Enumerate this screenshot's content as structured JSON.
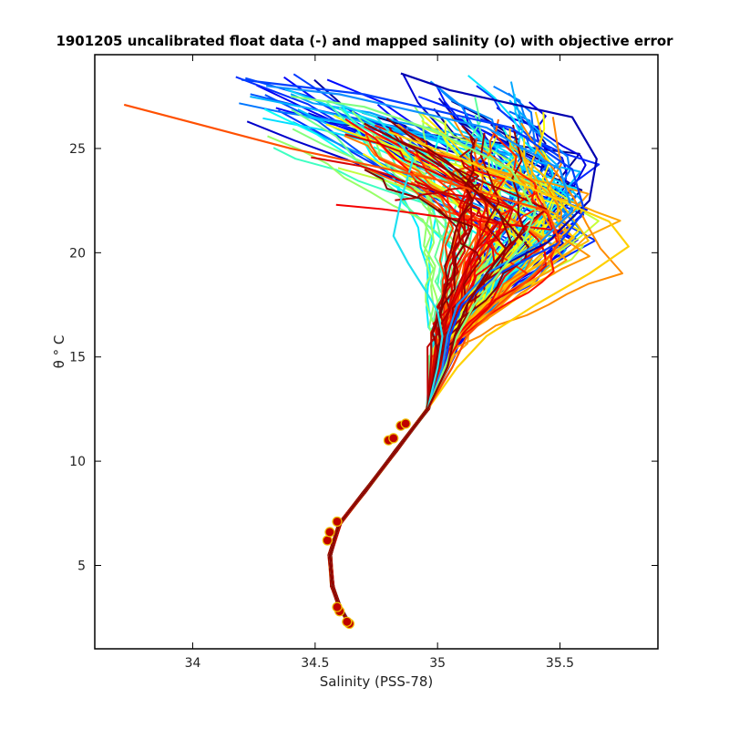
{
  "chart_data": {
    "type": "line",
    "title": "1901205 uncalibrated float data (-) and mapped salinity (o) with objective error",
    "xlabel": "Salinity (PSS-78)",
    "ylabel": "θ ° C",
    "xlim": [
      33.6,
      35.9
    ],
    "ylim": [
      1,
      29.5
    ],
    "xticks": [
      34,
      34.5,
      35,
      35.5
    ],
    "xtick_labels": [
      "34",
      "34.5",
      "35",
      "35.5"
    ],
    "yticks": [
      5,
      10,
      15,
      20,
      25
    ],
    "ytick_labels": [
      "5",
      "10",
      "15",
      "20",
      "25"
    ],
    "grid": false,
    "legend": "none",
    "colormap": "jet (profile index)",
    "colors": {
      "earliest": "#00008f",
      "blue": "#0030ff",
      "cyan": "#20e0f0",
      "green": "#80ff80",
      "yellow": "#ffd000",
      "orange": "#ff5000",
      "latest": "#8b0000"
    },
    "representative_profiles": [
      {
        "color": "#0000b0",
        "S": [
          34.64,
          34.6,
          34.57,
          34.56,
          34.6,
          34.7,
          34.83,
          34.96,
          35.02,
          35.04,
          35.08,
          35.2,
          35.45,
          35.62,
          35.65,
          35.55,
          35.05,
          34.85
        ],
        "T": [
          2.2,
          3.0,
          4.0,
          5.5,
          7.0,
          8.5,
          10.5,
          12.5,
          14.5,
          16.0,
          17.5,
          19.0,
          20.5,
          22.5,
          24.5,
          26.5,
          27.8,
          28.6
        ]
      },
      {
        "color": "#0040ff",
        "S": [
          34.64,
          34.6,
          34.57,
          34.56,
          34.6,
          34.7,
          34.83,
          34.96,
          35.03,
          35.05,
          35.1,
          35.25,
          35.5,
          35.6,
          35.55,
          35.3,
          34.7,
          34.2
        ],
        "T": [
          2.2,
          3.0,
          4.0,
          5.5,
          7.0,
          8.5,
          10.5,
          12.5,
          14.5,
          16.0,
          17.5,
          19.0,
          20.5,
          22.0,
          24.0,
          26.0,
          27.6,
          28.3
        ]
      },
      {
        "color": "#1090ff",
        "S": [
          34.64,
          34.6,
          34.57,
          34.56,
          34.6,
          34.7,
          34.83,
          34.96,
          35.02,
          35.04,
          35.08,
          35.2,
          35.42,
          35.55,
          35.5,
          35.2,
          34.6,
          34.3
        ],
        "T": [
          2.2,
          3.0,
          4.0,
          5.5,
          7.0,
          8.5,
          10.5,
          12.5,
          14.5,
          16.0,
          17.5,
          19.0,
          20.5,
          22.0,
          24.0,
          26.0,
          27.6,
          28.0
        ]
      },
      {
        "color": "#20e0f0",
        "S": [
          34.64,
          34.6,
          34.57,
          34.56,
          34.6,
          34.7,
          34.83,
          34.96,
          35.0,
          35.02,
          35.0,
          34.95,
          34.88,
          34.82,
          34.85,
          34.9,
          34.75,
          34.55
        ],
        "T": [
          2.2,
          3.0,
          4.0,
          5.5,
          7.0,
          8.5,
          10.5,
          12.5,
          14.5,
          16.0,
          17.2,
          18.2,
          19.5,
          20.8,
          22.5,
          24.5,
          26.5,
          27.3
        ]
      },
      {
        "color": "#80ff80",
        "S": [
          34.64,
          34.6,
          34.57,
          34.56,
          34.6,
          34.7,
          34.83,
          34.96,
          35.03,
          35.08,
          35.15,
          35.25,
          35.35,
          35.4,
          35.3,
          35.0,
          34.7,
          34.4
        ],
        "T": [
          2.2,
          3.0,
          4.0,
          5.5,
          7.0,
          8.5,
          10.5,
          12.5,
          14.5,
          16.0,
          17.5,
          19.0,
          20.5,
          22.0,
          24.0,
          25.8,
          27.0,
          27.5
        ]
      },
      {
        "color": "#ffd000",
        "S": [
          34.64,
          34.6,
          34.57,
          34.56,
          34.6,
          34.7,
          34.83,
          34.96,
          35.08,
          35.2,
          35.4,
          35.62,
          35.78,
          35.7,
          35.4,
          35.1,
          34.8
        ],
        "T": [
          2.2,
          3.0,
          4.0,
          5.5,
          7.0,
          8.5,
          10.5,
          12.5,
          14.5,
          16.0,
          17.5,
          19.0,
          20.3,
          21.5,
          23.0,
          24.5,
          25.8
        ]
      },
      {
        "color": "#ff5000",
        "S": [
          34.64,
          34.6,
          34.57,
          34.56,
          34.6,
          34.7,
          34.83,
          34.96,
          35.06,
          35.12,
          35.25,
          35.4,
          35.5,
          35.45,
          35.0,
          34.4,
          33.72
        ],
        "T": [
          2.2,
          3.0,
          4.0,
          5.5,
          7.0,
          8.5,
          10.5,
          12.5,
          14.5,
          16.0,
          17.5,
          19.0,
          20.5,
          22.0,
          23.5,
          25.0,
          27.1
        ]
      },
      {
        "color": "#8b0000",
        "S": [
          34.64,
          34.6,
          34.57,
          34.56,
          34.6,
          34.7,
          34.83,
          34.96,
          35.04,
          35.07,
          35.12,
          35.2,
          35.3,
          35.25,
          35.1,
          34.9,
          34.7
        ],
        "T": [
          2.2,
          3.0,
          4.0,
          5.5,
          7.0,
          8.5,
          10.5,
          12.5,
          14.5,
          16.0,
          17.5,
          19.0,
          20.5,
          22.0,
          23.5,
          25.0,
          26.2
        ]
      }
    ],
    "mapped_points": [
      {
        "S": 34.64,
        "T": 2.2
      },
      {
        "S": 34.63,
        "T": 2.3
      },
      {
        "S": 34.6,
        "T": 2.8
      },
      {
        "S": 34.59,
        "T": 3.0
      },
      {
        "S": 34.55,
        "T": 6.2
      },
      {
        "S": 34.56,
        "T": 6.6
      },
      {
        "S": 34.59,
        "T": 7.1
      },
      {
        "S": 34.8,
        "T": 11.0
      },
      {
        "S": 34.82,
        "T": 11.1
      },
      {
        "S": 34.85,
        "T": 11.7
      },
      {
        "S": 34.87,
        "T": 11.8
      }
    ]
  }
}
